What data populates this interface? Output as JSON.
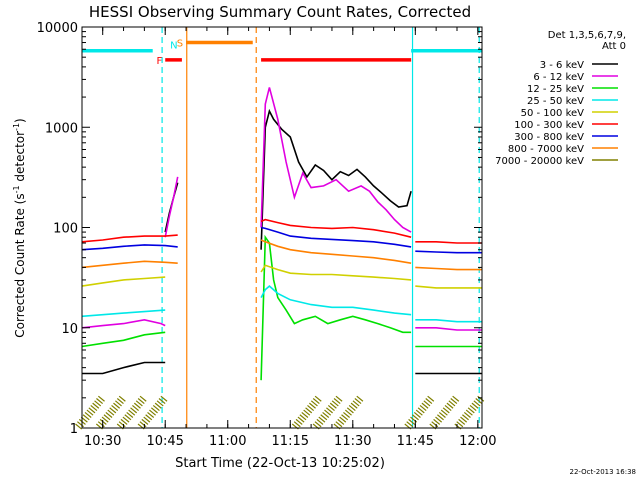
{
  "chart_data": {
    "type": "line",
    "title": "HESSI Observing Summary Count Rates, Corrected",
    "xlabel": "Start Time (22-Oct-13 10:25:02)",
    "ylabel": "Corrected Count Rate (s",
    "ylabel_sup1": "-1",
    "ylabel_mid": " detector",
    "ylabel_sup2": "-1",
    "ylabel_end": ")",
    "timestamp": "22-Oct-2013 16:38",
    "y_scale": "log",
    "ylim": [
      1,
      10000
    ],
    "xlim": [
      "10:25:02",
      "12:01:00"
    ],
    "x_ticks": [
      "10:30",
      "10:45",
      "11:00",
      "11:15",
      "11:30",
      "11:45",
      "12:00"
    ],
    "y_ticks": [
      "1",
      "10",
      "100",
      "1000",
      "10000"
    ],
    "legend": {
      "placement": "right",
      "header": [
        "Det 1,3,5,6,7,9,",
        "Att 0"
      ],
      "entries": [
        {
          "label": "3 - 6 keV",
          "color": "#000000"
        },
        {
          "label": "6 - 12 keV",
          "color": "#e000e0"
        },
        {
          "label": "12 - 25 keV",
          "color": "#00e000"
        },
        {
          "label": "25 - 50 keV",
          "color": "#00e8e8"
        },
        {
          "label": "50 - 100 keV",
          "color": "#d0d000"
        },
        {
          "label": "100 - 300 keV",
          "color": "#ff0000"
        },
        {
          "label": "300 - 800 keV",
          "color": "#0000e0"
        },
        {
          "label": "800 - 7000 keV",
          "color": "#ff8000"
        },
        {
          "label": "7000 - 20000 keV",
          "color": "#808000"
        }
      ]
    },
    "flag_bars": [
      {
        "label": "",
        "color": "#00e8e8",
        "start": "10:25",
        "end": "10:42",
        "y": 5800
      },
      {
        "label": "F",
        "color": "#ff0000",
        "start": "10:45",
        "end": "10:49",
        "y": 4700
      },
      {
        "label": "N",
        "color": "#00e8e8",
        "start": "",
        "end": "",
        "y": 5800
      },
      {
        "label": "S",
        "color": "#ff8000",
        "start": "10:50",
        "end": "11:06",
        "y": 7000
      },
      {
        "label": "",
        "color": "#ff0000",
        "start": "11:08",
        "end": "11:44",
        "y": 4700
      },
      {
        "label": "",
        "color": "#00e8e8",
        "start": "11:44",
        "end": "12:01",
        "y": 5800
      }
    ],
    "vertical_markers": [
      {
        "time": "10:44:15",
        "color": "#00e8e8",
        "style": "dashed"
      },
      {
        "time": "10:50:10",
        "color": "#ff8000",
        "style": "solid"
      },
      {
        "time": "11:06:50",
        "color": "#ff8000",
        "style": "dashed"
      },
      {
        "time": "11:44:20",
        "color": "#00e8e8",
        "style": "solid"
      },
      {
        "time": "12:00:20",
        "color": "#00e8e8",
        "style": "dashed"
      }
    ],
    "series": [
      {
        "name": "3 - 6 keV",
        "color": "#000000",
        "segments": [
          {
            "t": [
              "10:25",
              "10:30",
              "10:35",
              "10:40",
              "10:45"
            ],
            "y": [
              3.5,
              3.5,
              4,
              4.5,
              4.5
            ]
          },
          {
            "t": [
              "10:45",
              "10:46",
              "10:47",
              "10:48"
            ],
            "y": [
              90,
              140,
              200,
              280
            ]
          },
          {
            "t": [
              "11:08",
              "11:09",
              "11:10",
              "11:11",
              "11:13",
              "11:15",
              "11:17",
              "11:19",
              "11:21",
              "11:23",
              "11:25",
              "11:27",
              "11:29",
              "11:31",
              "11:33",
              "11:35",
              "11:37",
              "11:39",
              "11:41",
              "11:43",
              "11:44"
            ],
            "y": [
              60,
              1000,
              1450,
              1200,
              950,
              800,
              450,
              320,
              420,
              370,
              300,
              360,
              330,
              380,
              320,
              260,
              220,
              185,
              160,
              165,
              230
            ]
          },
          {
            "t": [
              "11:45",
              "11:50",
              "11:55",
              "12:01"
            ],
            "y": [
              3.5,
              3.5,
              3.5,
              3.5
            ]
          }
        ]
      },
      {
        "name": "6 - 12 keV",
        "color": "#e000e0",
        "segments": [
          {
            "t": [
              "10:25",
              "10:30",
              "10:35",
              "10:40",
              "10:44",
              "10:45"
            ],
            "y": [
              10,
              10.5,
              11,
              12,
              11,
              10.5
            ]
          },
          {
            "t": [
              "10:45",
              "10:46",
              "10:47",
              "10:48"
            ],
            "y": [
              80,
              130,
              200,
              320
            ]
          },
          {
            "t": [
              "11:08",
              "11:09",
              "11:10",
              "11:12",
              "11:14",
              "11:16",
              "11:18",
              "11:20",
              "11:23",
              "11:26",
              "11:29",
              "11:32",
              "11:34",
              "11:36",
              "11:38",
              "11:40",
              "11:42",
              "11:44"
            ],
            "y": [
              100,
              1700,
              2500,
              1200,
              450,
              200,
              350,
              250,
              260,
              300,
              230,
              260,
              230,
              180,
              150,
              120,
              100,
              90
            ]
          },
          {
            "t": [
              "11:45",
              "11:50",
              "11:55",
              "12:01"
            ],
            "y": [
              10,
              10,
              9.5,
              9.5
            ]
          }
        ]
      },
      {
        "name": "12 - 25 keV",
        "color": "#00e000",
        "segments": [
          {
            "t": [
              "10:25",
              "10:30",
              "10:35",
              "10:40",
              "10:45"
            ],
            "y": [
              6.5,
              7,
              7.5,
              8.5,
              9
            ]
          },
          {
            "t": [
              "11:08",
              "11:09",
              "11:10",
              "11:11",
              "11:12",
              "11:14",
              "11:16",
              "11:18",
              "11:21",
              "11:24",
              "11:27",
              "11:30",
              "11:33",
              "11:36",
              "11:39",
              "11:42",
              "11:44"
            ],
            "y": [
              3,
              80,
              70,
              30,
              20,
              15,
              11,
              12,
              13,
              11,
              12,
              13,
              12,
              11,
              10,
              9,
              9
            ]
          },
          {
            "t": [
              "11:45",
              "11:50",
              "11:55",
              "12:01"
            ],
            "y": [
              6.5,
              6.5,
              6.5,
              6.5
            ]
          }
        ]
      },
      {
        "name": "25 - 50 keV",
        "color": "#00e8e8",
        "segments": [
          {
            "t": [
              "10:25",
              "10:30",
              "10:35",
              "10:40",
              "10:45"
            ],
            "y": [
              13,
              13.5,
              14,
              14.5,
              15
            ]
          },
          {
            "t": [
              "11:08",
              "11:09",
              "11:10",
              "11:12",
              "11:15",
              "11:20",
              "11:25",
              "11:30",
              "11:35",
              "11:40",
              "11:44"
            ],
            "y": [
              20,
              24,
              26,
              22,
              19,
              17,
              16,
              16,
              15,
              14,
              13.5
            ]
          },
          {
            "t": [
              "11:45",
              "11:50",
              "11:55",
              "12:01"
            ],
            "y": [
              12,
              12,
              11.5,
              11.5
            ]
          }
        ]
      },
      {
        "name": "50 - 100 keV",
        "color": "#d0d000",
        "segments": [
          {
            "t": [
              "10:25",
              "10:30",
              "10:35",
              "10:40",
              "10:45"
            ],
            "y": [
              26,
              28,
              30,
              31,
              32
            ]
          },
          {
            "t": [
              "11:08",
              "11:09",
              "11:12",
              "11:15",
              "11:20",
              "11:25",
              "11:30",
              "11:35",
              "11:40",
              "11:44"
            ],
            "y": [
              36,
              42,
              38,
              35,
              34,
              34,
              33,
              32,
              31,
              30
            ]
          },
          {
            "t": [
              "11:45",
              "11:50",
              "11:55",
              "12:01"
            ],
            "y": [
              26,
              25,
              25,
              25
            ]
          }
        ]
      },
      {
        "name": "100 - 300 keV",
        "color": "#ff0000",
        "segments": [
          {
            "t": [
              "10:25",
              "10:30",
              "10:35",
              "10:40",
              "10:45",
              "10:48"
            ],
            "y": [
              72,
              75,
              80,
              82,
              82,
              84
            ]
          },
          {
            "t": [
              "11:08",
              "11:09",
              "11:12",
              "11:15",
              "11:20",
              "11:25",
              "11:30",
              "11:35",
              "11:40",
              "11:44"
            ],
            "y": [
              115,
              120,
              112,
              105,
              100,
              98,
              100,
              95,
              88,
              80
            ]
          },
          {
            "t": [
              "11:45",
              "11:50",
              "11:55",
              "12:01"
            ],
            "y": [
              72,
              72,
              70,
              70
            ]
          }
        ]
      },
      {
        "name": "300 - 800 keV",
        "color": "#0000e0",
        "segments": [
          {
            "t": [
              "10:25",
              "10:30",
              "10:35",
              "10:40",
              "10:45",
              "10:48"
            ],
            "y": [
              60,
              62,
              65,
              67,
              66,
              64
            ]
          },
          {
            "t": [
              "11:08",
              "11:09",
              "11:12",
              "11:15",
              "11:20",
              "11:25",
              "11:30",
              "11:35",
              "11:40",
              "11:44"
            ],
            "y": [
              100,
              98,
              90,
              82,
              78,
              76,
              74,
              72,
              68,
              64
            ]
          },
          {
            "t": [
              "11:45",
              "11:50",
              "11:55",
              "12:01"
            ],
            "y": [
              58,
              57,
              56,
              56
            ]
          }
        ]
      },
      {
        "name": "800 - 7000 keV",
        "color": "#ff8000",
        "segments": [
          {
            "t": [
              "10:25",
              "10:30",
              "10:35",
              "10:40",
              "10:45",
              "10:48"
            ],
            "y": [
              40,
              42,
              44,
              46,
              45,
              44
            ]
          },
          {
            "t": [
              "11:08",
              "11:09",
              "11:12",
              "11:15",
              "11:20",
              "11:25",
              "11:30",
              "11:35",
              "11:40",
              "11:44"
            ],
            "y": [
              75,
              72,
              65,
              60,
              56,
              54,
              52,
              50,
              47,
              44
            ]
          },
          {
            "t": [
              "11:45",
              "11:50",
              "11:55",
              "12:01"
            ],
            "y": [
              40,
              39,
              38,
              38
            ]
          }
        ]
      },
      {
        "name": "7000 - 20000 keV",
        "color": "#808000",
        "segments": [
          {
            "t": [
              "10:27",
              "10:32",
              "10:37",
              "10:42"
            ],
            "y": [
              2,
              2,
              2,
              2
            ]
          },
          {
            "t": [
              "11:19",
              "11:24",
              "11:29"
            ],
            "y": [
              2,
              2,
              2
            ]
          },
          {
            "t": [
              "11:46",
              "11:52",
              "11:58"
            ],
            "y": [
              2,
              2,
              2
            ]
          }
        ]
      }
    ]
  }
}
